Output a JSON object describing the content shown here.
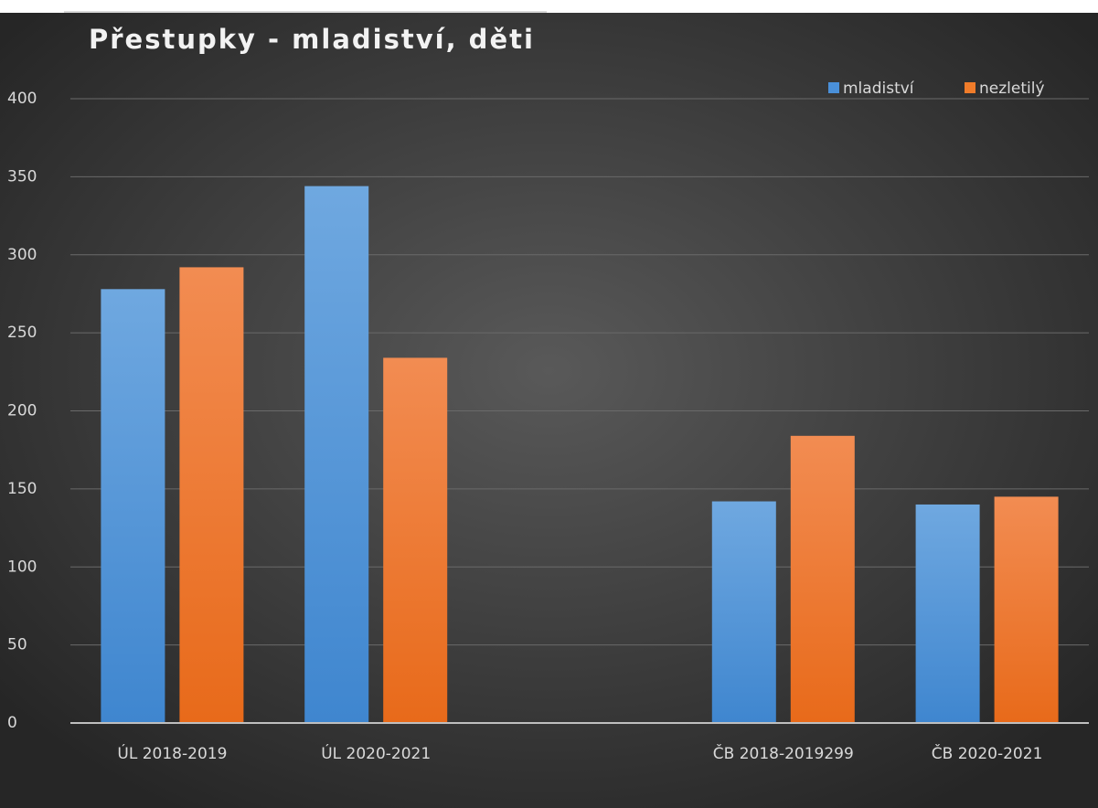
{
  "chart_data": {
    "type": "bar",
    "title": "Přestupky - mladiství, děti",
    "categories": [
      "ÚL 2018-2019",
      "ÚL 2020-2021",
      null,
      "ČB 2018-2019299",
      "ČB 2020-2021"
    ],
    "series": [
      {
        "name": "mladiství",
        "color": "#4a90d9",
        "values": [
          278,
          344,
          null,
          142,
          140
        ]
      },
      {
        "name": "nezletilý",
        "color": "#f07c2a",
        "values": [
          292,
          234,
          null,
          184,
          145
        ]
      }
    ],
    "ylim": [
      0,
      400
    ],
    "yticks": [
      0,
      50,
      100,
      150,
      200,
      250,
      300,
      350,
      400
    ],
    "grid": true,
    "legend": "top-right"
  }
}
